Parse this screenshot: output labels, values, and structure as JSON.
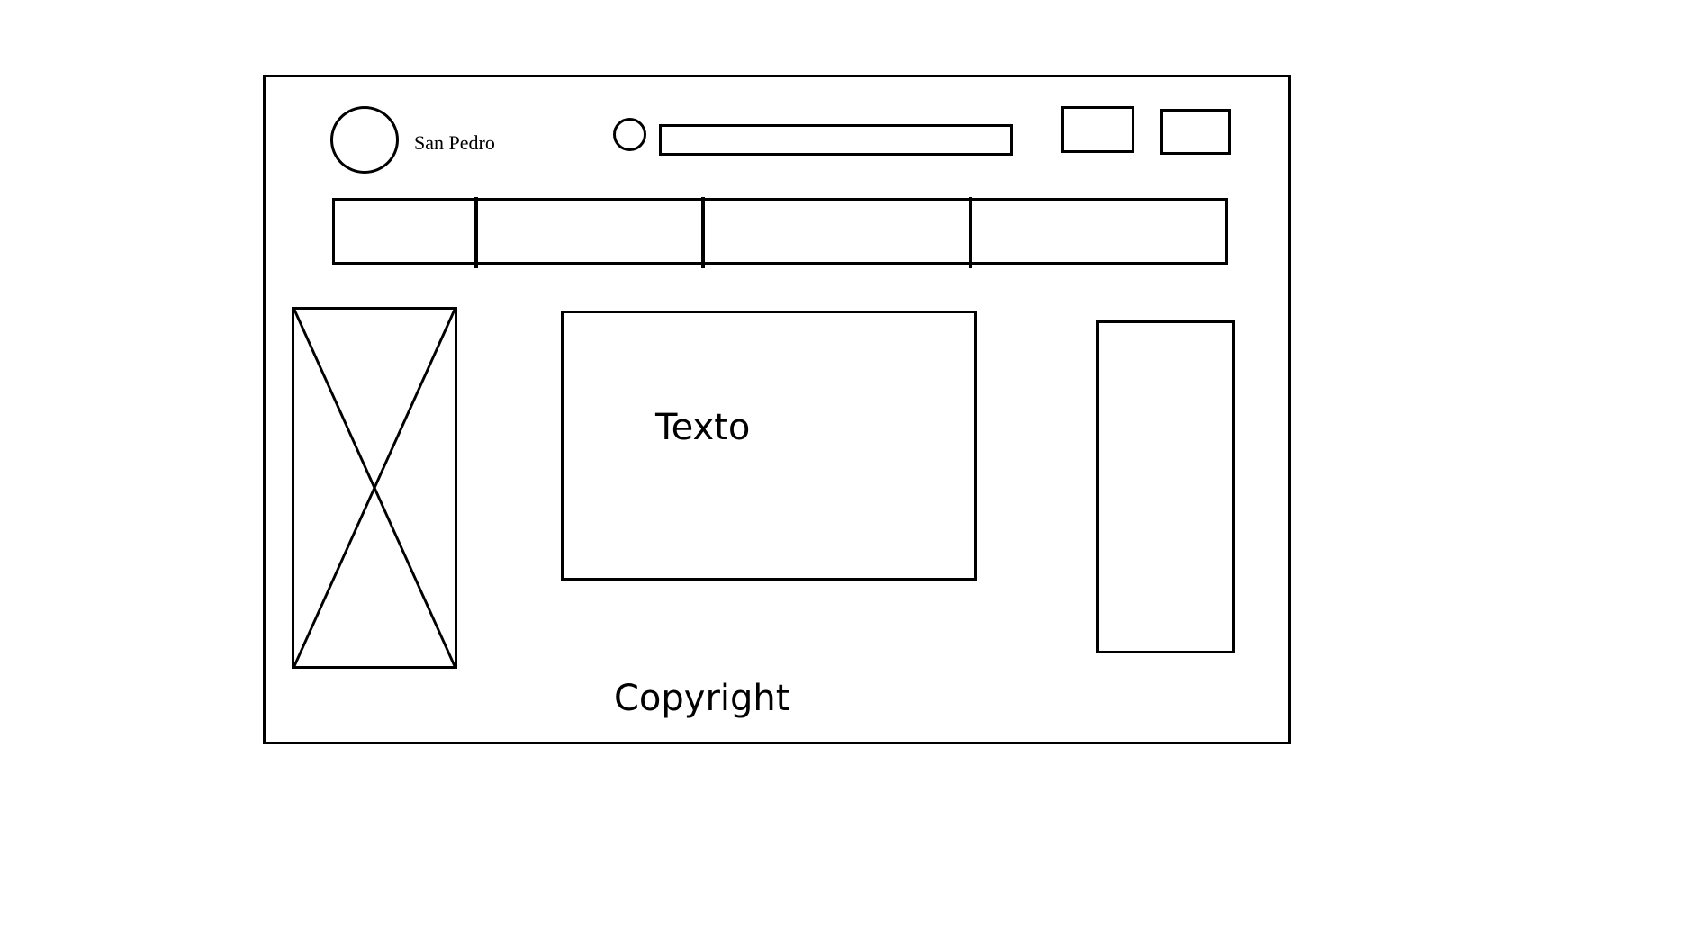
{
  "header": {
    "site_name": "San Pedro",
    "logo_icon": "circle-logo-icon",
    "search_icon": "circle-search-icon",
    "search_placeholder": ""
  },
  "main": {
    "image_placeholder_icon": "image-placeholder-icon",
    "text": "Texto"
  },
  "footer": {
    "text": "Copyright"
  },
  "colors": {
    "ink": "#000000",
    "background": "#ffffff"
  }
}
